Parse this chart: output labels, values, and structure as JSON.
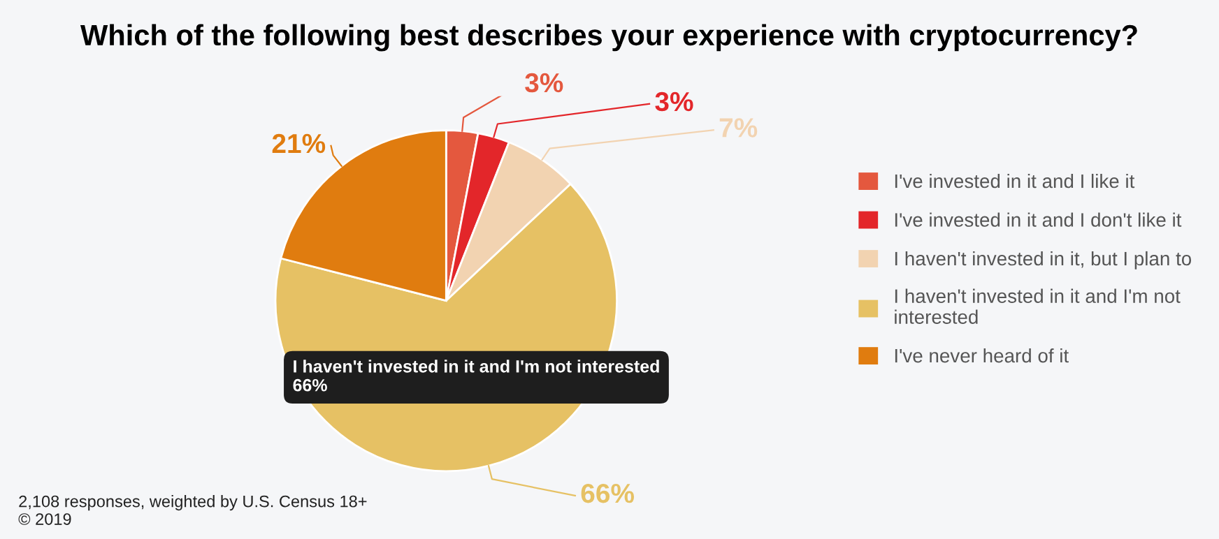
{
  "chart_data": {
    "type": "pie",
    "title": "Which of the following best describes your experience with cryptocurrency?",
    "categories": [
      "I've invested in it and I like it",
      "I've invested in it and I don't like it",
      "I haven't invested in it, but I plan to",
      "I haven't invested in it and I'm not interested",
      "I've never heard of it"
    ],
    "values": [
      3,
      3,
      7,
      66,
      21
    ],
    "colors": [
      "#e4583e",
      "#e3262a",
      "#f2d3b1",
      "#e6c164",
      "#e07c0f"
    ],
    "value_labels": [
      "3%",
      "3%",
      "7%",
      "66%",
      "21%"
    ],
    "legend": "right",
    "annotations": [
      "I haven't invested in it and I'm not interested\n66%",
      "2,108 responses, weighted by U.S. Census 18+\n© 2019"
    ]
  }
}
